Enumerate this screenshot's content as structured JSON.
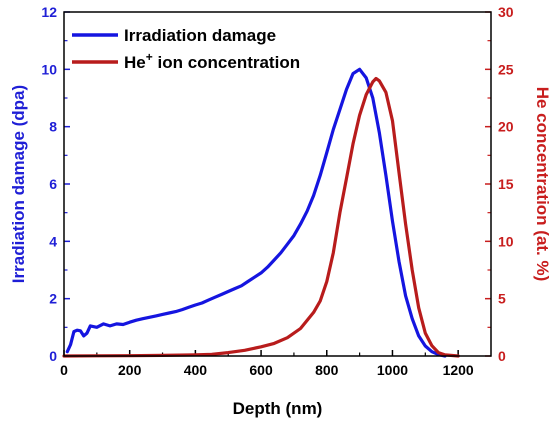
{
  "chart_data": {
    "type": "line",
    "xlabel": "Depth (nm)",
    "ylabel_left": "Irradiation damage (dpa)",
    "ylabel_right": "He concentration (at. %)",
    "xlim": [
      0,
      1300
    ],
    "ylim_left": [
      0,
      12
    ],
    "ylim_right": [
      0,
      30
    ],
    "x_ticks": [
      0,
      200,
      400,
      600,
      800,
      1000,
      1200
    ],
    "y_left_ticks": [
      0,
      2,
      4,
      6,
      8,
      10,
      12
    ],
    "y_right_ticks": [
      0,
      5,
      10,
      15,
      20,
      25,
      30
    ],
    "grid": false,
    "legend_position": "top-left",
    "colors": {
      "left_axis": "#1f1fd6",
      "right_axis": "#c81e1e"
    },
    "series": [
      {
        "name": "Irradiation damage",
        "axis": "left",
        "color": "#1515e0",
        "points": [
          [
            10,
            0.15
          ],
          [
            20,
            0.4
          ],
          [
            30,
            0.85
          ],
          [
            40,
            0.9
          ],
          [
            50,
            0.88
          ],
          [
            60,
            0.7
          ],
          [
            70,
            0.8
          ],
          [
            80,
            1.05
          ],
          [
            100,
            1.0
          ],
          [
            120,
            1.12
          ],
          [
            140,
            1.05
          ],
          [
            160,
            1.12
          ],
          [
            180,
            1.1
          ],
          [
            200,
            1.18
          ],
          [
            220,
            1.25
          ],
          [
            240,
            1.3
          ],
          [
            260,
            1.35
          ],
          [
            280,
            1.4
          ],
          [
            300,
            1.45
          ],
          [
            320,
            1.5
          ],
          [
            340,
            1.55
          ],
          [
            360,
            1.62
          ],
          [
            380,
            1.7
          ],
          [
            400,
            1.78
          ],
          [
            420,
            1.85
          ],
          [
            440,
            1.95
          ],
          [
            460,
            2.05
          ],
          [
            480,
            2.15
          ],
          [
            500,
            2.25
          ],
          [
            520,
            2.35
          ],
          [
            540,
            2.45
          ],
          [
            560,
            2.6
          ],
          [
            580,
            2.75
          ],
          [
            600,
            2.9
          ],
          [
            620,
            3.1
          ],
          [
            640,
            3.35
          ],
          [
            660,
            3.6
          ],
          [
            680,
            3.9
          ],
          [
            700,
            4.2
          ],
          [
            720,
            4.6
          ],
          [
            740,
            5.05
          ],
          [
            760,
            5.6
          ],
          [
            780,
            6.3
          ],
          [
            800,
            7.1
          ],
          [
            820,
            7.9
          ],
          [
            840,
            8.6
          ],
          [
            860,
            9.3
          ],
          [
            880,
            9.85
          ],
          [
            900,
            10.0
          ],
          [
            920,
            9.7
          ],
          [
            940,
            9.0
          ],
          [
            960,
            7.8
          ],
          [
            980,
            6.3
          ],
          [
            1000,
            4.7
          ],
          [
            1020,
            3.3
          ],
          [
            1040,
            2.1
          ],
          [
            1060,
            1.3
          ],
          [
            1080,
            0.7
          ],
          [
            1100,
            0.35
          ],
          [
            1120,
            0.15
          ],
          [
            1140,
            0.05
          ],
          [
            1160,
            0.0
          ]
        ]
      },
      {
        "name": "He⁺ ion concentration",
        "axis": "right",
        "color": "#b81c1c",
        "points": [
          [
            0,
            0.0
          ],
          [
            100,
            0.02
          ],
          [
            200,
            0.03
          ],
          [
            300,
            0.05
          ],
          [
            400,
            0.1
          ],
          [
            450,
            0.15
          ],
          [
            500,
            0.3
          ],
          [
            550,
            0.5
          ],
          [
            600,
            0.8
          ],
          [
            640,
            1.1
          ],
          [
            680,
            1.6
          ],
          [
            720,
            2.4
          ],
          [
            760,
            3.8
          ],
          [
            780,
            4.8
          ],
          [
            800,
            6.5
          ],
          [
            820,
            9.0
          ],
          [
            840,
            12.5
          ],
          [
            860,
            15.5
          ],
          [
            880,
            18.5
          ],
          [
            900,
            21.0
          ],
          [
            920,
            22.8
          ],
          [
            940,
            23.9
          ],
          [
            950,
            24.2
          ],
          [
            960,
            24.0
          ],
          [
            980,
            23.0
          ],
          [
            1000,
            20.5
          ],
          [
            1020,
            16.0
          ],
          [
            1040,
            11.5
          ],
          [
            1060,
            7.5
          ],
          [
            1080,
            4.2
          ],
          [
            1100,
            2.0
          ],
          [
            1120,
            0.9
          ],
          [
            1140,
            0.3
          ],
          [
            1160,
            0.1
          ],
          [
            1200,
            0.0
          ]
        ]
      }
    ]
  }
}
